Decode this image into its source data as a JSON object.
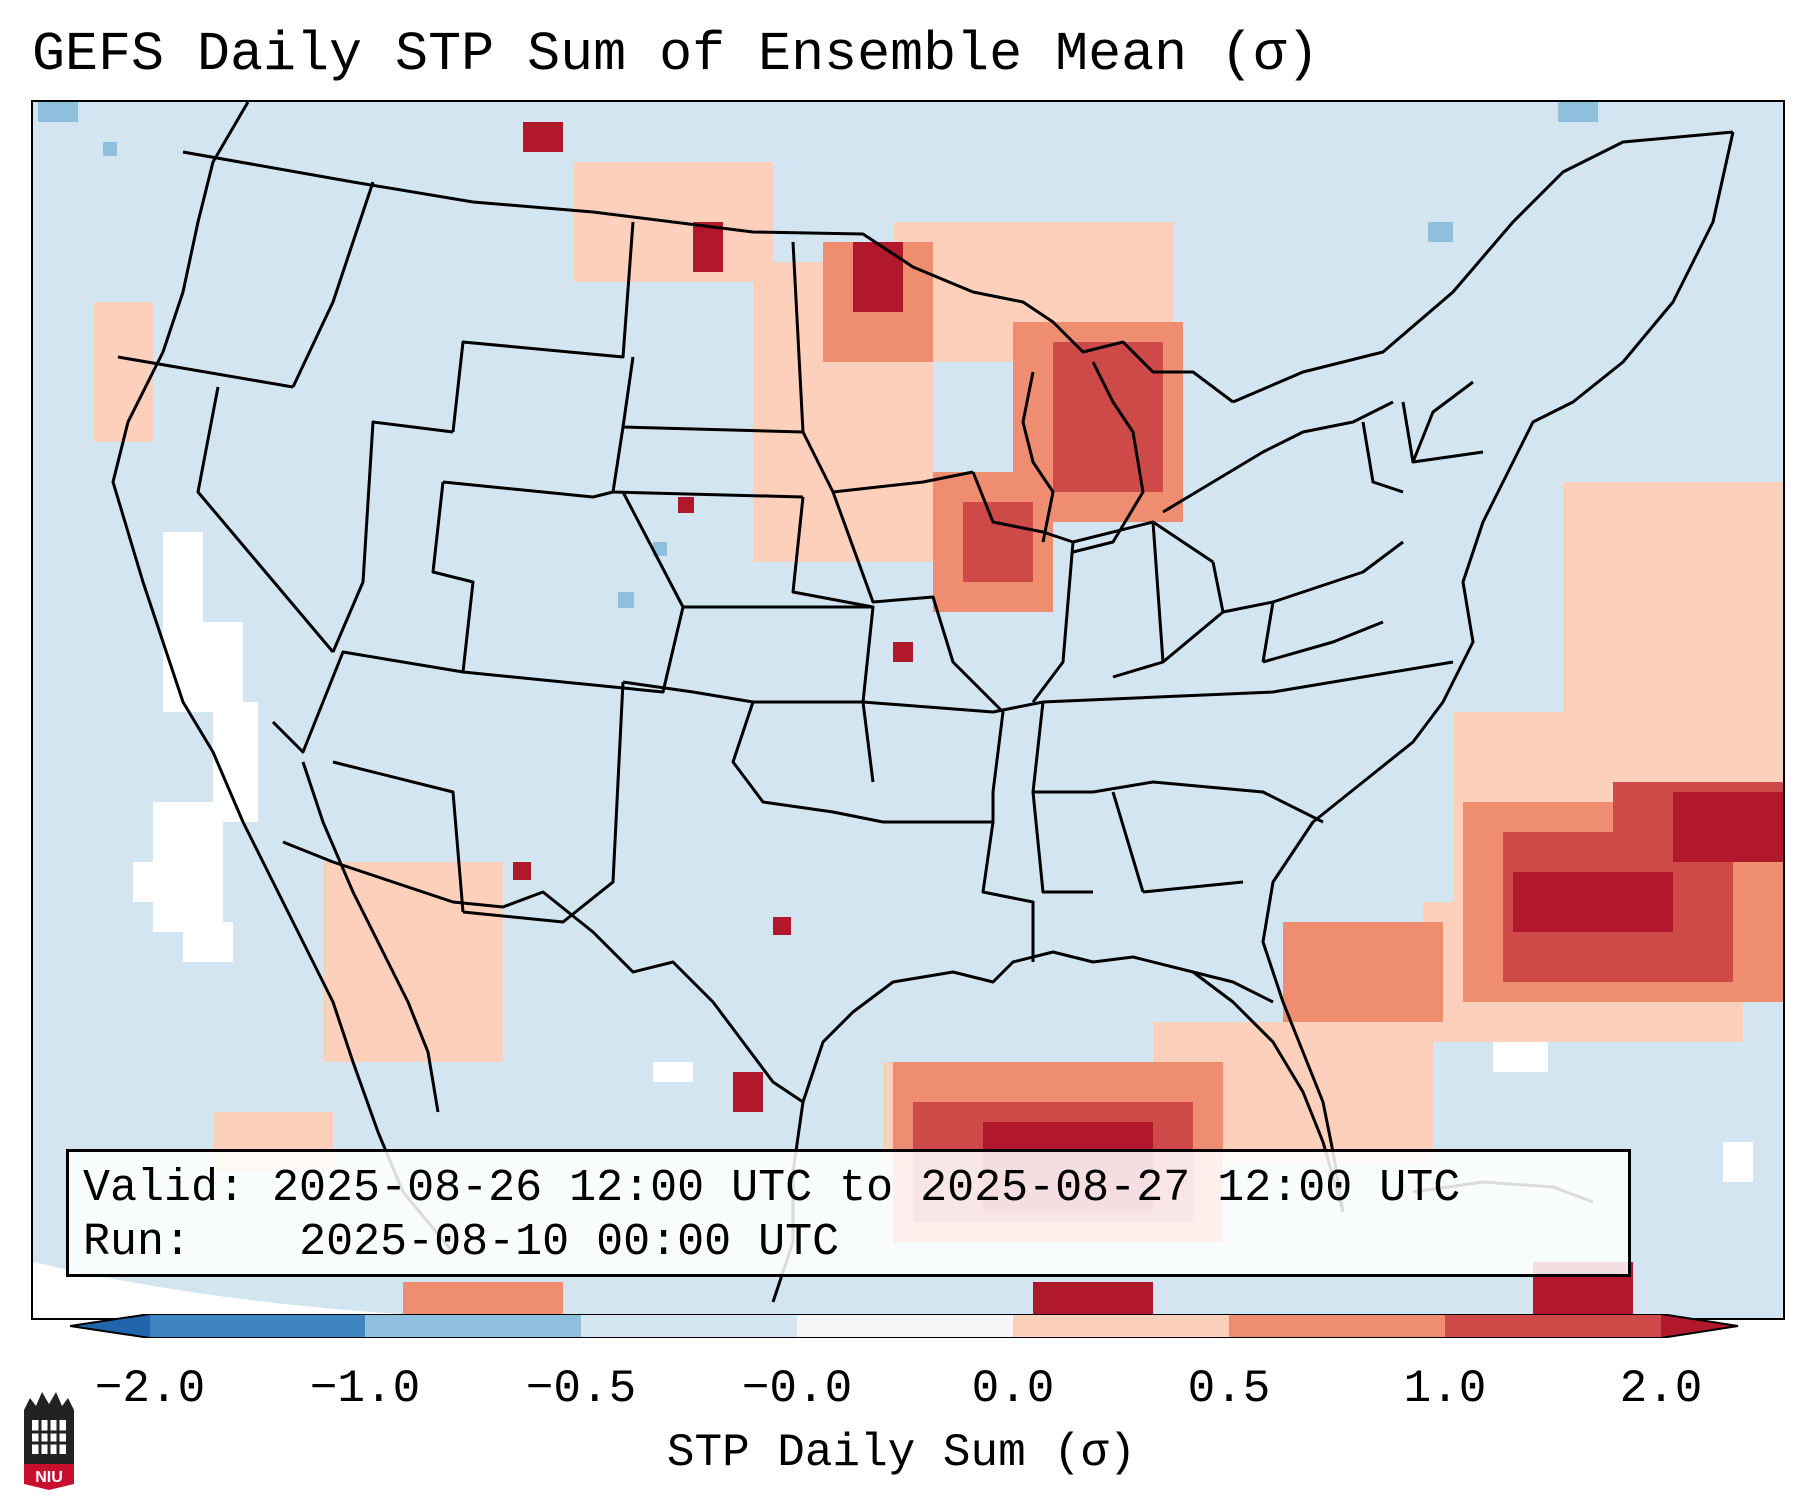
{
  "title": "GEFS Daily STP Sum of Ensemble Mean (σ)",
  "info": {
    "valid_label": "Valid:",
    "valid_value": "2025-08-26 12:00 UTC to 2025-08-27 12:00 UTC",
    "run_label": "Run:",
    "run_value": "2025-08-10 00:00 UTC"
  },
  "colorbar": {
    "label": "STP Daily Sum (σ)",
    "ticks": [
      "−2.0",
      "−1.0",
      "−0.5",
      "−0.0",
      "0.0",
      "0.5",
      "1.0",
      "2.0"
    ],
    "colors": [
      "#3f86c0",
      "#8ebfdc",
      "#d3e5f0",
      "#f6f6f6",
      "#fcd0bb",
      "#ef8d70",
      "#cd4a48",
      "#b2182b"
    ]
  },
  "map_colors": {
    "background": "#d3e5f0",
    "light_anomaly": "#fcd0bb",
    "moderate_anomaly": "#ef8d70",
    "strong_anomaly": "#cd4a48",
    "extreme_anomaly": "#b2182b",
    "no_data": "#ffffff"
  },
  "logo": {
    "text": "NIU"
  }
}
